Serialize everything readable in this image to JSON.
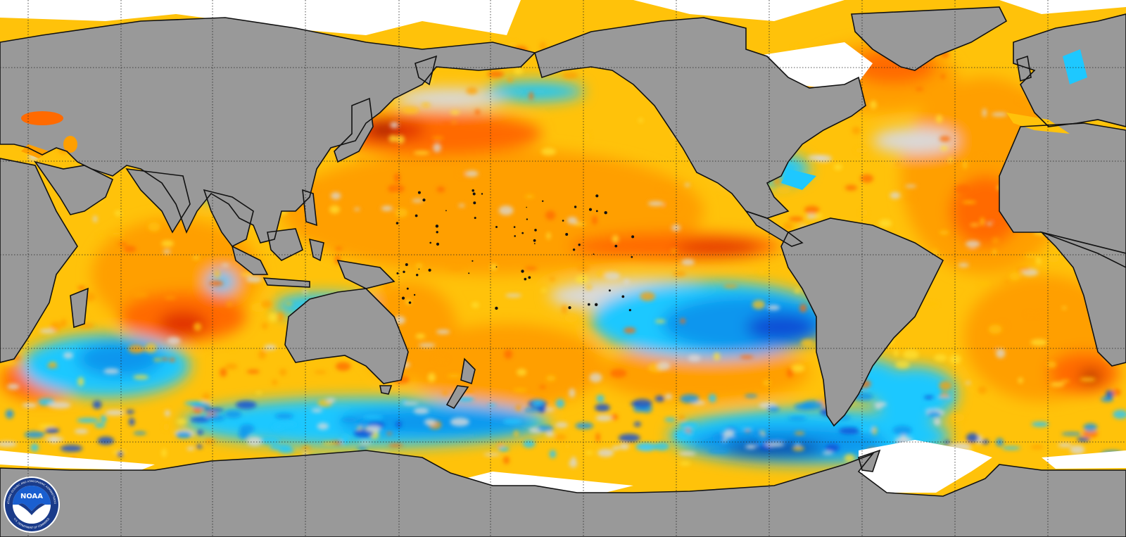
{
  "map": {
    "projection": "equirectangular, Pacific-centered",
    "content": "sea surface temperature anomaly",
    "colors": {
      "land": "#999999",
      "ice": "#ffffff",
      "coast": "#111111",
      "grid": "#222222",
      "near_zero": "#d9d9d9",
      "warm_1": "#ffe033",
      "warm_2": "#ffc20a",
      "warm_3": "#ff9f00",
      "warm_4": "#ff6a00",
      "warm_5": "#e03000",
      "warm_6": "#8a0000",
      "cool_1": "#1ec8ff",
      "cool_2": "#0a96ee",
      "cool_3": "#0a4fd6",
      "cool_4": "#0a2a9a"
    }
  },
  "logo": {
    "name": "noaa-logo",
    "wordmark": "NOAA",
    "ring_text_top": "NATIONAL OCEANIC AND ATMOSPHERIC ADMINISTRATION",
    "ring_text_bottom": "U.S. DEPARTMENT OF COMMERCE"
  }
}
